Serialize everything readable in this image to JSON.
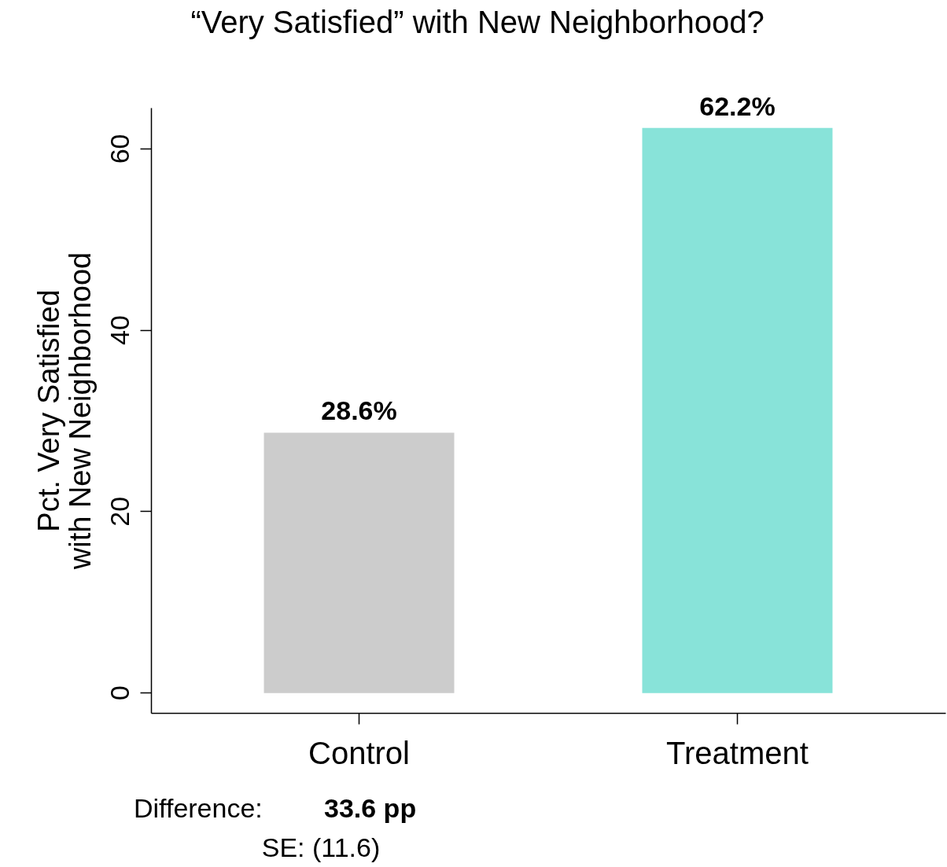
{
  "chart_data": {
    "type": "bar",
    "title": "“Very Satisfied” with New Neighborhood?",
    "ylabel": "Pct. Very Satisfied\nwith New Neighborhood",
    "categories": [
      "Control",
      "Treatment"
    ],
    "values": [
      28.6,
      62.2
    ],
    "colors": [
      "#cccccc",
      "#88e3d9"
    ],
    "value_labels": [
      "28.6%",
      "62.2%"
    ],
    "ylim": [
      -2.25,
      64.5
    ],
    "yticks": [
      0,
      20,
      40,
      60
    ],
    "grid": false,
    "annotations": [
      "Difference:",
      "33.6 pp",
      "SE: (11.6)"
    ]
  }
}
